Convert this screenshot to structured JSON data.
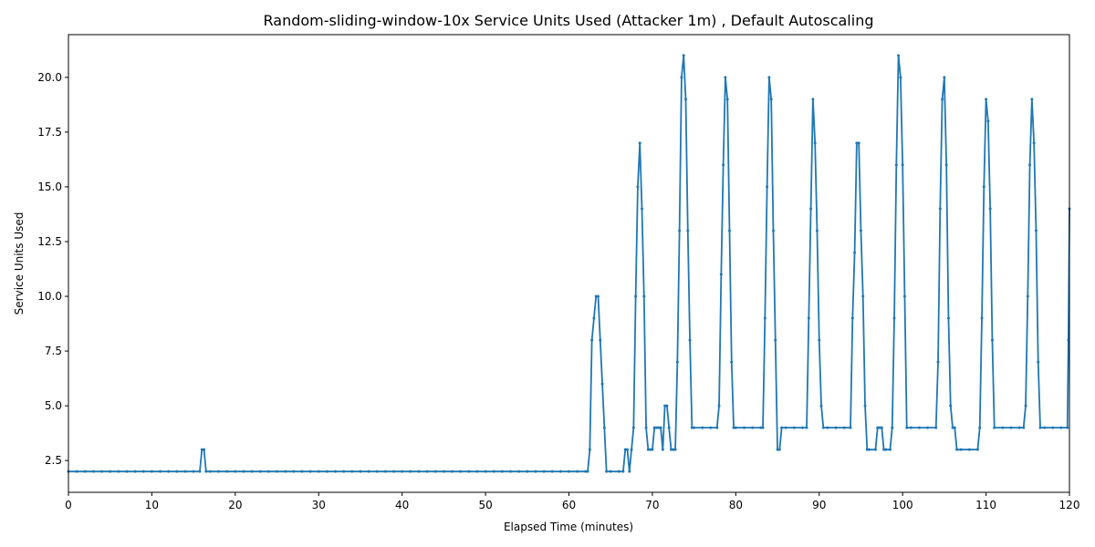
{
  "chart_data": {
    "type": "line",
    "title": "Random-sliding-window-10x Service Units Used (Attacker 1m) , Default Autoscaling",
    "x_label": "Elapsed Time (minutes)",
    "y_label": "Service Units Used",
    "color": "#1f77b4",
    "x": [
      0,
      1,
      2,
      3,
      4,
      5,
      6,
      7,
      8,
      9,
      10,
      11,
      12,
      13,
      14,
      15,
      15.75,
      16,
      16.25,
      16.5,
      17,
      18,
      19,
      20,
      21,
      22,
      23,
      24,
      25,
      26,
      27,
      28,
      29,
      30,
      31,
      32,
      33,
      34,
      35,
      36,
      37,
      38,
      39,
      40,
      41,
      42,
      43,
      44,
      45,
      46,
      47,
      48,
      49,
      50,
      51,
      52,
      53,
      54,
      55,
      56,
      57,
      58,
      59,
      60,
      61,
      62,
      62.25,
      62.5,
      62.75,
      63,
      63.25,
      63.5,
      63.75,
      64,
      64.25,
      64.5,
      65,
      66,
      66.5,
      66.75,
      67,
      67.25,
      67.5,
      67.75,
      68,
      68.25,
      68.5,
      68.75,
      69,
      69.25,
      69.5,
      69.75,
      70,
      70.25,
      70.5,
      70.75,
      71,
      71.25,
      71.5,
      71.75,
      72,
      72.25,
      72.5,
      72.75,
      73,
      73.25,
      73.5,
      73.75,
      74,
      74.25,
      74.5,
      74.75,
      75,
      76,
      77,
      77.75,
      78,
      78.25,
      78.5,
      78.75,
      79,
      79.25,
      79.5,
      79.75,
      80,
      81,
      82,
      83,
      83.25,
      83.5,
      83.75,
      84,
      84.25,
      84.5,
      84.75,
      85,
      85.25,
      85.5,
      86,
      87,
      88,
      88.5,
      88.75,
      89,
      89.25,
      89.5,
      89.75,
      90,
      90.25,
      90.5,
      91,
      92,
      93,
      93.75,
      94,
      94.25,
      94.5,
      94.75,
      95,
      95.25,
      95.5,
      95.75,
      96,
      96.75,
      97,
      97.25,
      97.5,
      97.75,
      98,
      98.5,
      98.75,
      99,
      99.25,
      99.5,
      99.75,
      100,
      100.25,
      100.5,
      101,
      102,
      103,
      104,
      104.25,
      104.5,
      104.75,
      105,
      105.25,
      105.5,
      105.75,
      106,
      106.25,
      106.5,
      107,
      108,
      109,
      109.25,
      109.5,
      109.75,
      110,
      110.25,
      110.5,
      110.75,
      111,
      112,
      113,
      114,
      114.5,
      114.75,
      115,
      115.25,
      115.5,
      115.75,
      116,
      116.25,
      116.5,
      117,
      118,
      119,
      119.75,
      119.875,
      120
    ],
    "values": [
      2,
      2,
      2,
      2,
      2,
      2,
      2,
      2,
      2,
      2,
      2,
      2,
      2,
      2,
      2,
      2,
      2,
      3,
      3,
      2,
      2,
      2,
      2,
      2,
      2,
      2,
      2,
      2,
      2,
      2,
      2,
      2,
      2,
      2,
      2,
      2,
      2,
      2,
      2,
      2,
      2,
      2,
      2,
      2,
      2,
      2,
      2,
      2,
      2,
      2,
      2,
      2,
      2,
      2,
      2,
      2,
      2,
      2,
      2,
      2,
      2,
      2,
      2,
      2,
      2,
      2,
      2,
      3,
      8,
      9,
      10,
      10,
      8,
      6,
      4,
      2,
      2,
      2,
      2,
      3,
      3,
      2,
      3,
      4,
      10,
      15,
      17,
      14,
      10,
      4,
      3,
      3,
      3,
      4,
      4,
      4,
      4,
      3,
      5,
      5,
      4,
      3,
      3,
      3,
      7,
      13,
      20,
      21,
      19,
      13,
      8,
      4,
      4,
      4,
      4,
      4,
      5,
      11,
      16,
      20,
      19,
      13,
      7,
      4,
      4,
      4,
      4,
      4,
      4,
      9,
      15,
      20,
      19,
      13,
      8,
      3,
      3,
      4,
      4,
      4,
      4,
      4,
      9,
      14,
      19,
      17,
      13,
      8,
      5,
      4,
      4,
      4,
      4,
      4,
      9,
      12,
      17,
      17,
      13,
      10,
      5,
      3,
      3,
      3,
      4,
      4,
      4,
      3,
      3,
      3,
      4,
      9,
      16,
      21,
      20,
      16,
      10,
      4,
      4,
      4,
      4,
      4,
      7,
      14,
      19,
      20,
      16,
      9,
      5,
      4,
      4,
      3,
      3,
      3,
      3,
      4,
      9,
      15,
      19,
      18,
      14,
      8,
      4,
      4,
      4,
      4,
      4,
      5,
      10,
      16,
      19,
      17,
      13,
      7,
      4,
      4,
      4,
      4,
      4,
      8,
      14
    ],
    "xlim": [
      0,
      120
    ],
    "xticks": [
      0,
      10,
      20,
      30,
      40,
      50,
      60,
      70,
      80,
      90,
      100,
      110,
      120
    ],
    "ylim": [
      1.05,
      21.95
    ],
    "yticks": [
      {
        "value": 2.5,
        "label": "2.5"
      },
      {
        "value": 5,
        "label": "5.0"
      },
      {
        "value": 7.5,
        "label": "7.5"
      },
      {
        "value": 10,
        "label": "10.0"
      },
      {
        "value": 12.5,
        "label": "12.5"
      },
      {
        "value": 15,
        "label": "15.0"
      },
      {
        "value": 17.5,
        "label": "17.5"
      },
      {
        "value": 20,
        "label": "20.0"
      }
    ]
  }
}
